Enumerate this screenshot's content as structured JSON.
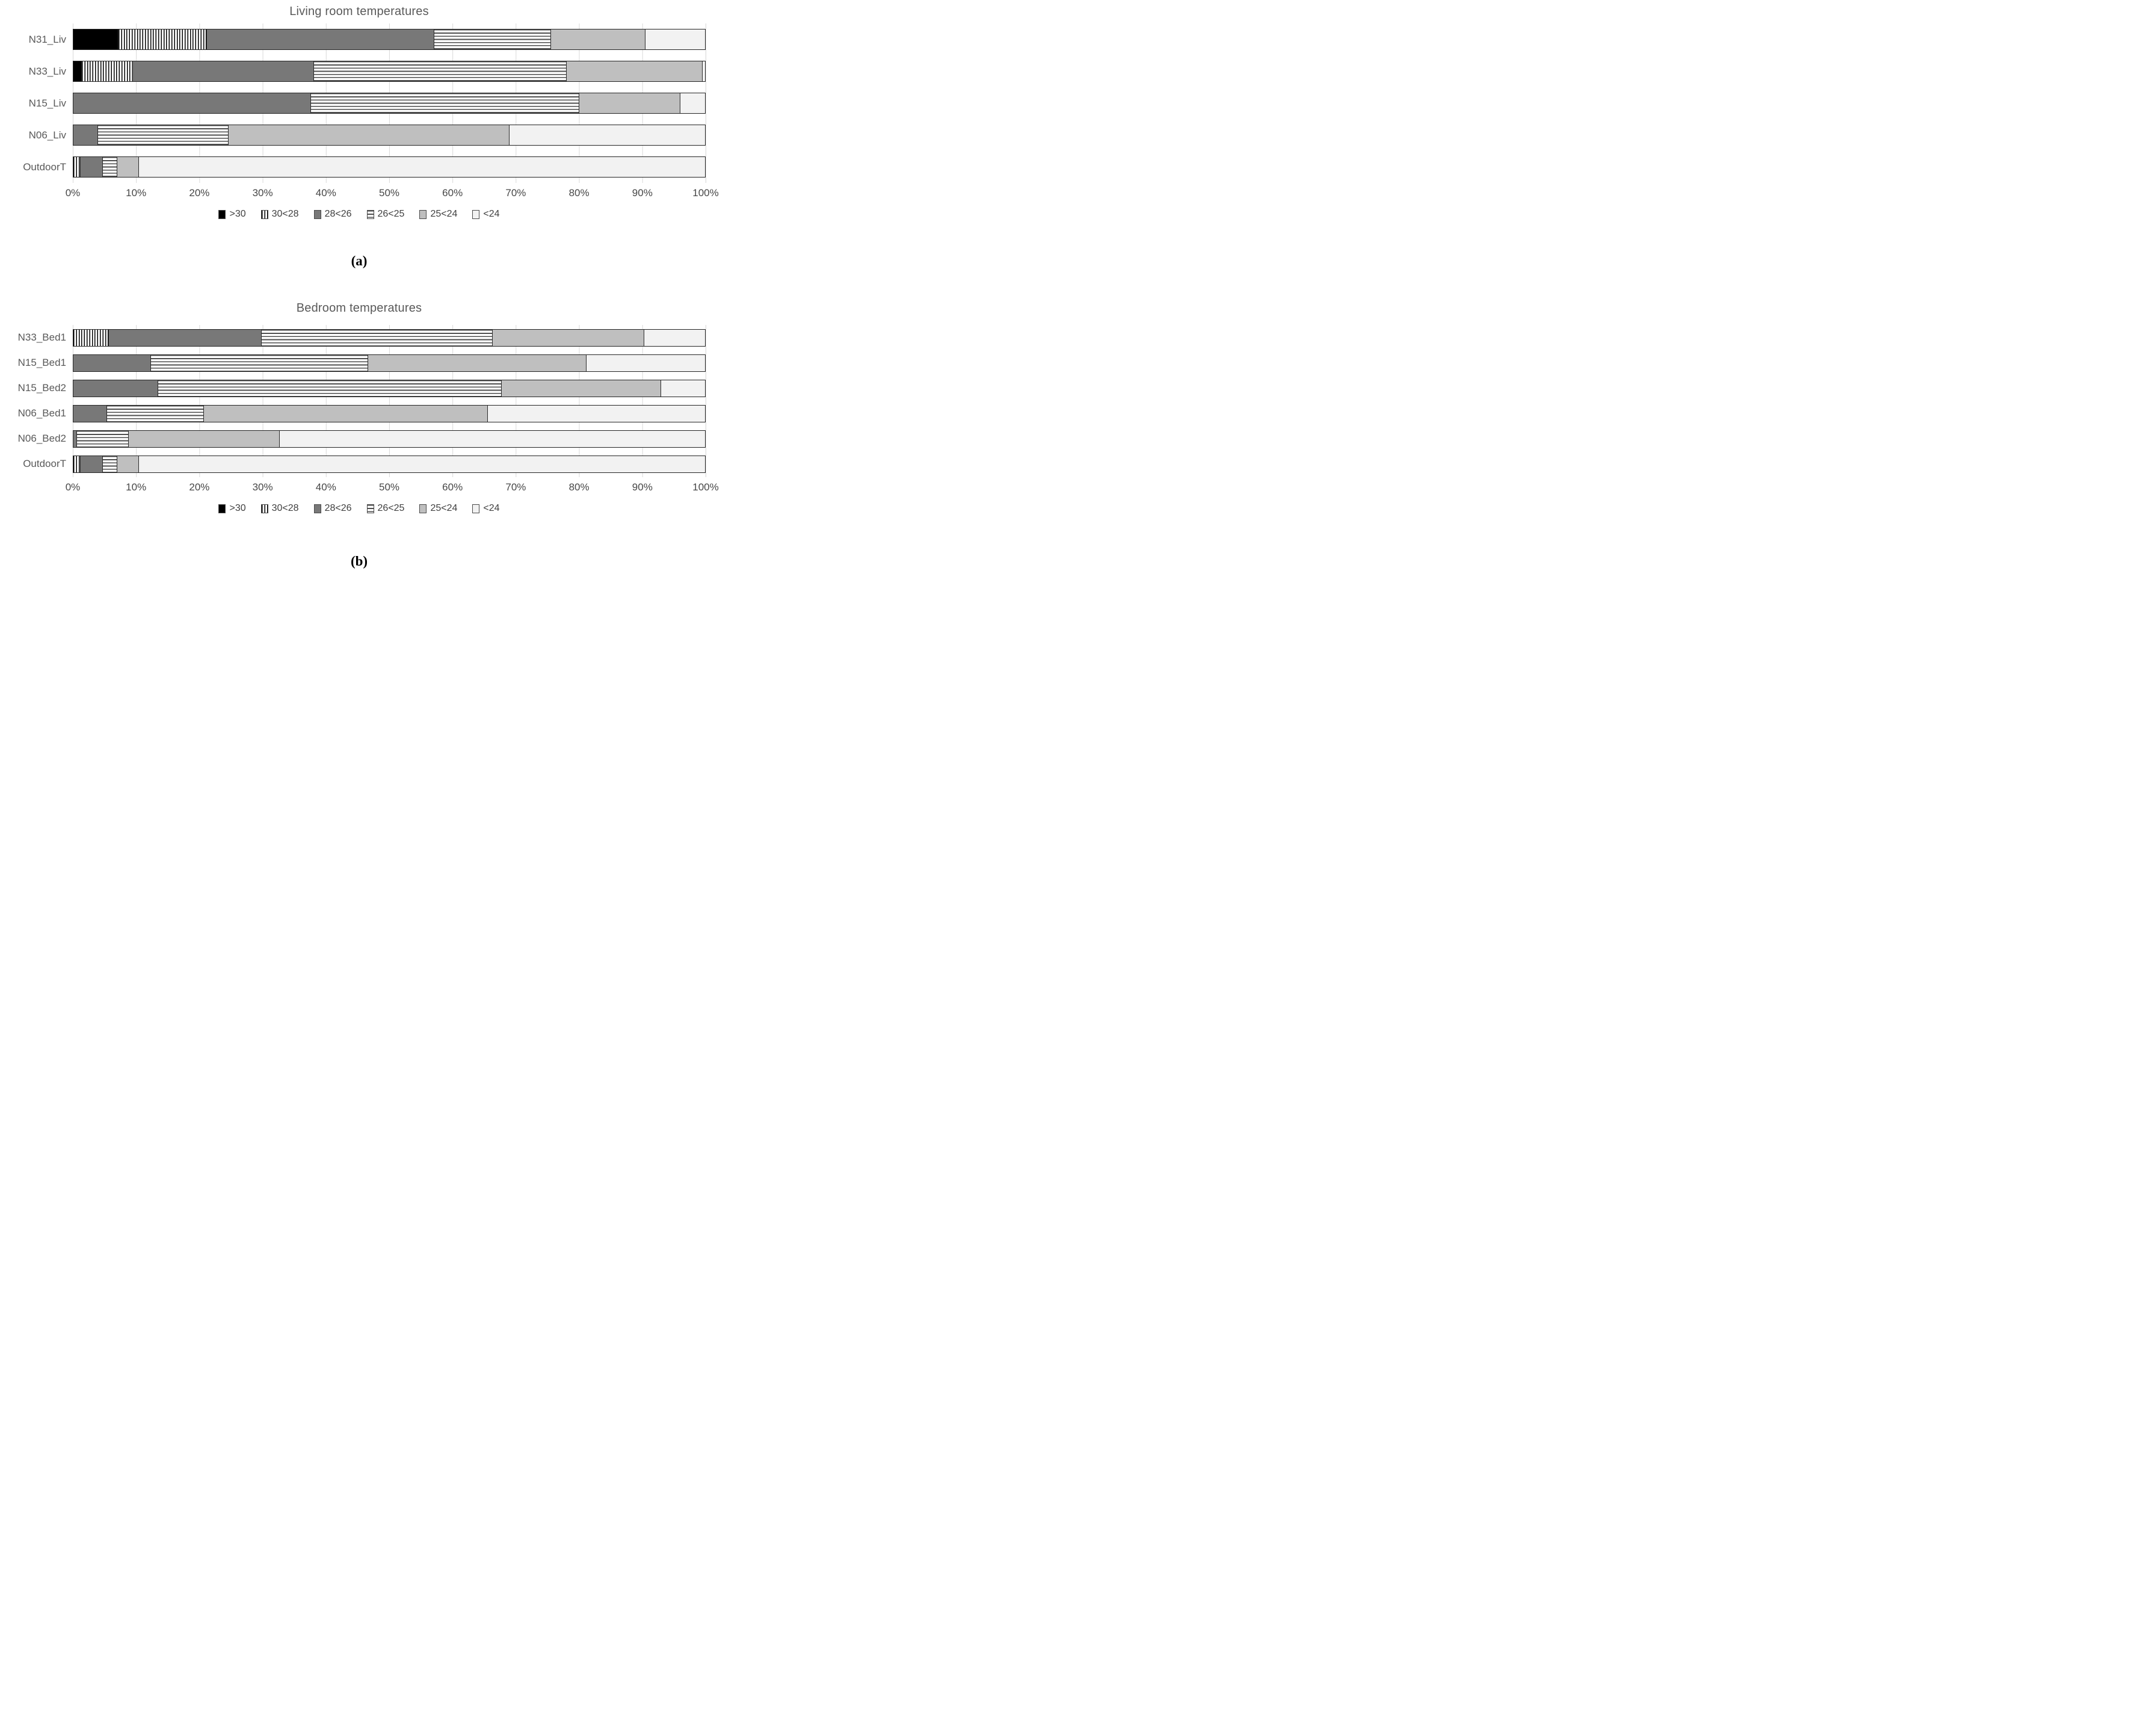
{
  "captions": {
    "a": "(a)",
    "b": "(b)"
  },
  "colors": {
    "black": "#000000",
    "dark_gray": "#787878",
    "medium_gray": "#bfbfbf",
    "light_gray": "#f2f2f2",
    "gridline": "#d9d9d9",
    "title_text": "#595959",
    "tick_text": "#474747",
    "legend_text": "#404040"
  },
  "legend": {
    "items": [
      {
        "label": ">30",
        "pattern": "solid-black"
      },
      {
        "label": "30<28",
        "pattern": "vertical-stripes"
      },
      {
        "label": "28<26",
        "pattern": "dark-gray"
      },
      {
        "label": "26<25",
        "pattern": "horizontal-stripes"
      },
      {
        "label": "25<24",
        "pattern": "medium-gray"
      },
      {
        "label": "<24",
        "pattern": "light-gray"
      }
    ]
  },
  "chart_data": [
    {
      "type": "bar",
      "orientation": "horizontal",
      "stacked": true,
      "units": "percent",
      "title": "Living room temperatures",
      "xlabel": "",
      "ylabel": "",
      "xlim": [
        0,
        100
      ],
      "grid": true,
      "legend_position": "bottom",
      "x_tick_labels": [
        "0%",
        "10%",
        "20%",
        "30%",
        "40%",
        "50%",
        "60%",
        "70%",
        "80%",
        "90%",
        "100%"
      ],
      "categories": [
        "N31_Liv",
        "N33_Liv",
        "N15_Liv",
        "N06_Liv",
        "OutdoorT"
      ],
      "series": [
        {
          "name": ">30",
          "pattern": "solid-black",
          "values": [
            7.0,
            1.2,
            0,
            0,
            0
          ]
        },
        {
          "name": "30<28",
          "pattern": "vertical-stripes",
          "values": [
            14.0,
            8.1,
            0,
            0,
            1.0
          ]
        },
        {
          "name": "28<26",
          "pattern": "dark-gray",
          "values": [
            36.0,
            28.7,
            37.5,
            3.8,
            3.6
          ]
        },
        {
          "name": "26<25",
          "pattern": "horizontal-stripes",
          "values": [
            18.5,
            40.0,
            42.5,
            20.7,
            2.3
          ]
        },
        {
          "name": "25<24",
          "pattern": "medium-gray",
          "values": [
            15.0,
            21.5,
            16.0,
            44.5,
            3.4
          ]
        },
        {
          "name": "<24",
          "pattern": "light-gray",
          "values": [
            9.5,
            0.5,
            4.0,
            31.0,
            89.7
          ]
        }
      ]
    },
    {
      "type": "bar",
      "orientation": "horizontal",
      "stacked": true,
      "units": "percent",
      "title": "Bedroom temperatures",
      "xlabel": "",
      "ylabel": "",
      "xlim": [
        0,
        100
      ],
      "grid": true,
      "legend_position": "bottom",
      "x_tick_labels": [
        "0%",
        "10%",
        "20%",
        "30%",
        "40%",
        "50%",
        "60%",
        "70%",
        "80%",
        "90%",
        "100%"
      ],
      "categories": [
        "N33_Bed1",
        "N15_Bed1",
        "N15_Bed2",
        "N06_Bed1",
        "N06_Bed2",
        "OutdoorT"
      ],
      "series": [
        {
          "name": ">30",
          "pattern": "solid-black",
          "values": [
            0,
            0,
            0,
            0,
            0,
            0
          ]
        },
        {
          "name": "30<28",
          "pattern": "vertical-stripes",
          "values": [
            5.5,
            0,
            0,
            0,
            0,
            1.0
          ]
        },
        {
          "name": "28<26",
          "pattern": "dark-gray",
          "values": [
            24.2,
            12.2,
            13.3,
            5.2,
            0.5,
            3.6
          ]
        },
        {
          "name": "26<25",
          "pattern": "horizontal-stripes",
          "values": [
            36.6,
            34.4,
            54.4,
            15.4,
            8.2,
            2.3
          ]
        },
        {
          "name": "25<24",
          "pattern": "medium-gray",
          "values": [
            24.0,
            34.5,
            25.3,
            44.9,
            23.9,
            3.4
          ]
        },
        {
          "name": "<24",
          "pattern": "light-gray",
          "values": [
            9.7,
            18.9,
            7.0,
            34.5,
            67.4,
            89.7
          ]
        }
      ]
    }
  ]
}
